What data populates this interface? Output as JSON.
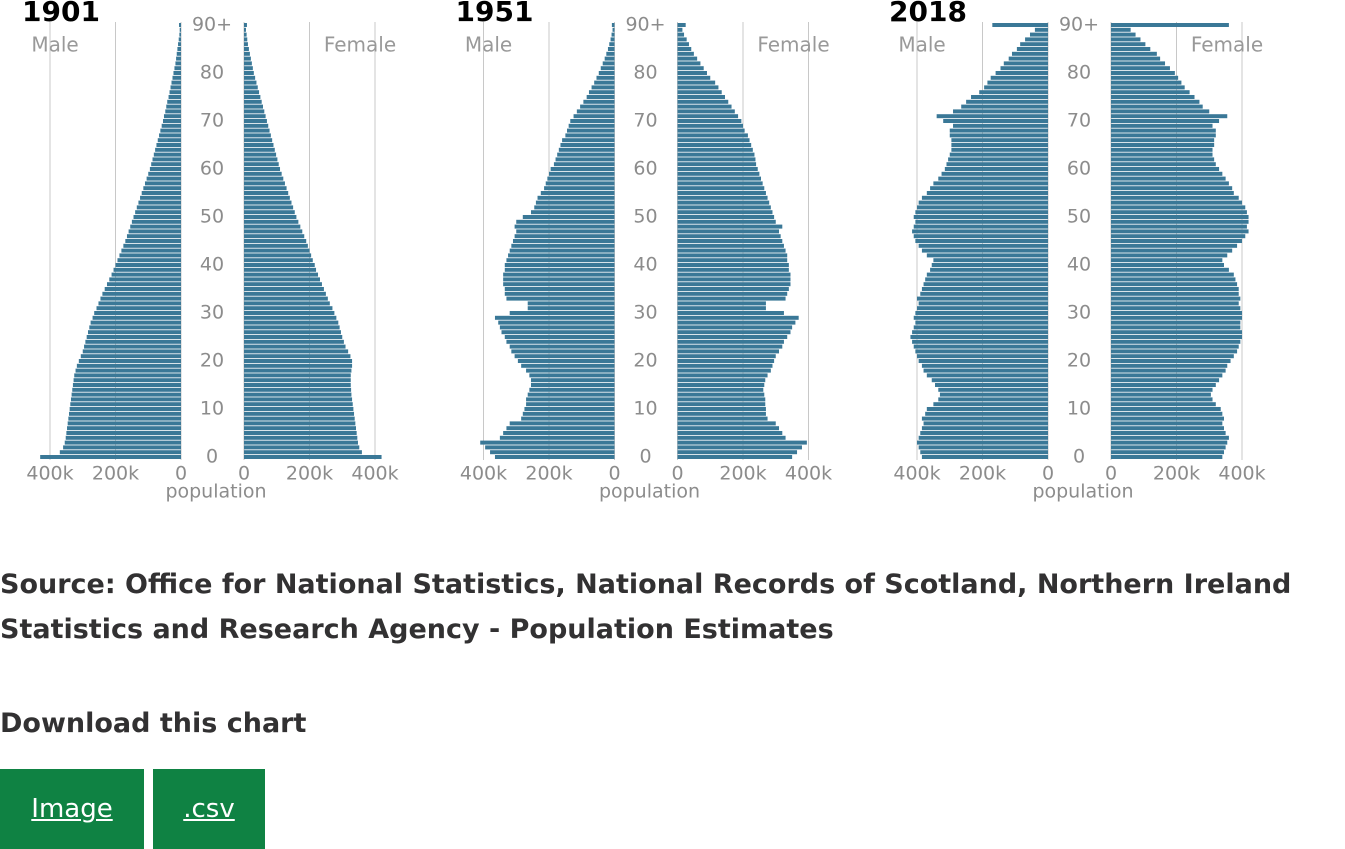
{
  "chart_data": [
    {
      "type": "pyramid",
      "title": "1901",
      "xlabel": "population",
      "categories": [
        "0",
        null,
        null,
        null,
        null,
        null,
        null,
        null,
        null,
        null,
        "10",
        null,
        null,
        null,
        null,
        null,
        null,
        null,
        null,
        null,
        "20",
        null,
        null,
        null,
        null,
        null,
        null,
        null,
        null,
        null,
        "30",
        null,
        null,
        null,
        null,
        null,
        null,
        null,
        null,
        null,
        "40",
        null,
        null,
        null,
        null,
        null,
        null,
        null,
        null,
        null,
        "50",
        null,
        null,
        null,
        null,
        null,
        null,
        null,
        null,
        null,
        "60",
        null,
        null,
        null,
        null,
        null,
        null,
        null,
        null,
        null,
        "70",
        null,
        null,
        null,
        null,
        null,
        null,
        null,
        null,
        null,
        "80",
        null,
        null,
        null,
        null,
        null,
        null,
        null,
        null,
        null,
        "90+"
      ],
      "xlim": [
        0,
        430000
      ],
      "xticks": [
        0,
        {
          "value": 200000,
          "label": "200k"
        },
        {
          "value": 400000,
          "label": "400k"
        }
      ],
      "grid": true,
      "series": [
        {
          "name": "Male",
          "color": "#3a7897",
          "values": [
            430000,
            370000,
            360000,
            355000,
            352000,
            350000,
            348000,
            346000,
            344000,
            342000,
            340000,
            338000,
            336000,
            334000,
            332000,
            330000,
            328000,
            326000,
            322000,
            318000,
            312000,
            306000,
            300000,
            296000,
            292000,
            288000,
            284000,
            280000,
            276000,
            270000,
            265000,
            258000,
            252000,
            246000,
            240000,
            233000,
            226000,
            219000,
            212000,
            206000,
            200000,
            194000,
            188000,
            182000,
            176000,
            170000,
            165000,
            160000,
            155000,
            150000,
            145000,
            140000,
            135000,
            130000,
            125000,
            120000,
            115000,
            110000,
            105000,
            100000,
            95000,
            91000,
            87000,
            83000,
            79000,
            75000,
            71000,
            67000,
            63000,
            59000,
            55000,
            52000,
            48000,
            45000,
            42000,
            38000,
            35000,
            32000,
            29000,
            26000,
            23000,
            20000,
            17000,
            15000,
            13000,
            11000,
            9000,
            7000,
            5000,
            4000,
            6000
          ]
        },
        {
          "name": "Female",
          "color": "#3a7897",
          "values": [
            420000,
            360000,
            352000,
            348000,
            346000,
            344000,
            342000,
            340000,
            338000,
            336000,
            334000,
            332000,
            330000,
            328000,
            327000,
            326000,
            326000,
            326000,
            328000,
            330000,
            330000,
            325000,
            318000,
            310000,
            305000,
            300000,
            296000,
            292000,
            288000,
            282000,
            276000,
            270000,
            262000,
            256000,
            250000,
            244000,
            238000,
            232000,
            226000,
            220000,
            216000,
            210000,
            205000,
            200000,
            195000,
            190000,
            184000,
            178000,
            172000,
            166000,
            160000,
            155000,
            150000,
            145000,
            140000,
            135000,
            130000,
            125000,
            120000,
            115000,
            110000,
            106000,
            102000,
            98000,
            94000,
            90000,
            86000,
            82000,
            78000,
            74000,
            70000,
            66000,
            62000,
            58000,
            54000,
            50000,
            46000,
            42000,
            38000,
            34000,
            30000,
            27000,
            24000,
            21000,
            18000,
            15000,
            12000,
            10000,
            8000,
            6000,
            9000
          ]
        }
      ]
    },
    {
      "type": "pyramid",
      "title": "1951",
      "xlabel": "population",
      "categories": [
        "0",
        null,
        null,
        null,
        null,
        null,
        null,
        null,
        null,
        null,
        "10",
        null,
        null,
        null,
        null,
        null,
        null,
        null,
        null,
        null,
        "20",
        null,
        null,
        null,
        null,
        null,
        null,
        null,
        null,
        null,
        "30",
        null,
        null,
        null,
        null,
        null,
        null,
        null,
        null,
        null,
        "40",
        null,
        null,
        null,
        null,
        null,
        null,
        null,
        null,
        null,
        "50",
        null,
        null,
        null,
        null,
        null,
        null,
        null,
        null,
        null,
        "60",
        null,
        null,
        null,
        null,
        null,
        null,
        null,
        null,
        null,
        "70",
        null,
        null,
        null,
        null,
        null,
        null,
        null,
        null,
        null,
        "80",
        null,
        null,
        null,
        null,
        null,
        null,
        null,
        null,
        null,
        "90+"
      ],
      "xlim": [
        0,
        430000
      ],
      "xticks": [
        0,
        {
          "value": 200000,
          "label": "200k"
        },
        {
          "value": 400000,
          "label": "400k"
        }
      ],
      "grid": true,
      "series": [
        {
          "name": "Male",
          "color": "#3a7897",
          "values": [
            365000,
            380000,
            395000,
            410000,
            350000,
            340000,
            330000,
            320000,
            285000,
            280000,
            275000,
            270000,
            270000,
            265000,
            260000,
            255000,
            255000,
            260000,
            270000,
            285000,
            295000,
            305000,
            315000,
            320000,
            330000,
            335000,
            345000,
            350000,
            355000,
            365000,
            320000,
            265000,
            265000,
            330000,
            335000,
            335000,
            340000,
            340000,
            340000,
            335000,
            335000,
            330000,
            325000,
            320000,
            315000,
            310000,
            305000,
            300000,
            305000,
            300000,
            280000,
            255000,
            245000,
            240000,
            235000,
            225000,
            215000,
            210000,
            205000,
            200000,
            195000,
            185000,
            180000,
            175000,
            170000,
            165000,
            160000,
            150000,
            145000,
            140000,
            135000,
            125000,
            115000,
            105000,
            95000,
            85000,
            78000,
            70000,
            62000,
            55000,
            48000,
            42000,
            36000,
            30000,
            25000,
            20000,
            16000,
            12000,
            9000,
            6000,
            8000
          ]
        },
        {
          "name": "Female",
          "color": "#3a7897",
          "values": [
            350000,
            365000,
            380000,
            395000,
            330000,
            320000,
            310000,
            300000,
            275000,
            270000,
            270000,
            268000,
            268000,
            265000,
            262000,
            265000,
            268000,
            275000,
            285000,
            290000,
            295000,
            300000,
            310000,
            320000,
            325000,
            335000,
            345000,
            350000,
            360000,
            370000,
            325000,
            270000,
            270000,
            330000,
            335000,
            340000,
            345000,
            345000,
            345000,
            340000,
            340000,
            335000,
            335000,
            330000,
            325000,
            320000,
            315000,
            310000,
            320000,
            300000,
            295000,
            290000,
            285000,
            280000,
            275000,
            270000,
            265000,
            260000,
            255000,
            250000,
            245000,
            240000,
            238000,
            235000,
            230000,
            225000,
            220000,
            215000,
            205000,
            200000,
            195000,
            185000,
            175000,
            165000,
            155000,
            145000,
            135000,
            125000,
            115000,
            100000,
            90000,
            80000,
            70000,
            60000,
            50000,
            42000,
            35000,
            28000,
            20000,
            15000,
            25000
          ]
        }
      ]
    },
    {
      "type": "pyramid",
      "title": "2018",
      "xlabel": "population",
      "categories": [
        "0",
        null,
        null,
        null,
        null,
        null,
        null,
        null,
        null,
        null,
        "10",
        null,
        null,
        null,
        null,
        null,
        null,
        null,
        null,
        null,
        "20",
        null,
        null,
        null,
        null,
        null,
        null,
        null,
        null,
        null,
        "30",
        null,
        null,
        null,
        null,
        null,
        null,
        null,
        null,
        null,
        "40",
        null,
        null,
        null,
        null,
        null,
        null,
        null,
        null,
        null,
        "50",
        null,
        null,
        null,
        null,
        null,
        null,
        null,
        null,
        null,
        "60",
        null,
        null,
        null,
        null,
        null,
        null,
        null,
        null,
        null,
        "70",
        null,
        null,
        null,
        null,
        null,
        null,
        null,
        null,
        null,
        "80",
        null,
        null,
        null,
        null,
        null,
        null,
        null,
        null,
        null,
        "90+"
      ],
      "xlim": [
        0,
        430000
      ],
      "xticks": [
        0,
        {
          "value": 200000,
          "label": "200k"
        },
        {
          "value": 400000,
          "label": "400k"
        }
      ],
      "grid": true,
      "series": [
        {
          "name": "Male",
          "color": "#3a7897",
          "values": [
            385000,
            390000,
            395000,
            400000,
            395000,
            390000,
            385000,
            380000,
            385000,
            375000,
            370000,
            350000,
            335000,
            330000,
            335000,
            345000,
            355000,
            370000,
            380000,
            385000,
            395000,
            400000,
            405000,
            410000,
            415000,
            420000,
            415000,
            410000,
            405000,
            410000,
            405000,
            400000,
            395000,
            400000,
            390000,
            385000,
            380000,
            375000,
            370000,
            360000,
            355000,
            350000,
            370000,
            385000,
            395000,
            405000,
            410000,
            415000,
            410000,
            405000,
            410000,
            405000,
            400000,
            395000,
            385000,
            370000,
            360000,
            350000,
            335000,
            325000,
            315000,
            310000,
            305000,
            300000,
            295000,
            295000,
            295000,
            300000,
            300000,
            290000,
            320000,
            340000,
            290000,
            265000,
            250000,
            235000,
            210000,
            195000,
            185000,
            175000,
            160000,
            145000,
            135000,
            120000,
            110000,
            95000,
            85000,
            70000,
            55000,
            40000,
            170000
          ]
        },
        {
          "name": "Female",
          "color": "#3a7897",
          "values": [
            340000,
            345000,
            350000,
            355000,
            360000,
            350000,
            345000,
            340000,
            345000,
            340000,
            335000,
            320000,
            310000,
            305000,
            310000,
            320000,
            330000,
            340000,
            350000,
            355000,
            365000,
            375000,
            385000,
            390000,
            395000,
            400000,
            400000,
            395000,
            395000,
            400000,
            400000,
            395000,
            390000,
            395000,
            390000,
            390000,
            385000,
            380000,
            375000,
            360000,
            345000,
            340000,
            355000,
            370000,
            385000,
            400000,
            410000,
            420000,
            415000,
            420000,
            420000,
            415000,
            410000,
            400000,
            390000,
            375000,
            370000,
            360000,
            350000,
            340000,
            330000,
            320000,
            315000,
            310000,
            310000,
            315000,
            315000,
            320000,
            320000,
            310000,
            330000,
            355000,
            300000,
            280000,
            270000,
            255000,
            240000,
            225000,
            215000,
            205000,
            195000,
            180000,
            165000,
            150000,
            140000,
            120000,
            105000,
            90000,
            75000,
            60000,
            360000
          ]
        }
      ]
    }
  ],
  "source": "Source: Office for National Statistics, National Records of Scotland, Northern Ireland Statistics and Research Agency - Population Estimates",
  "download": {
    "title": "Download this chart",
    "buttons": [
      "Image",
      ".csv"
    ]
  }
}
